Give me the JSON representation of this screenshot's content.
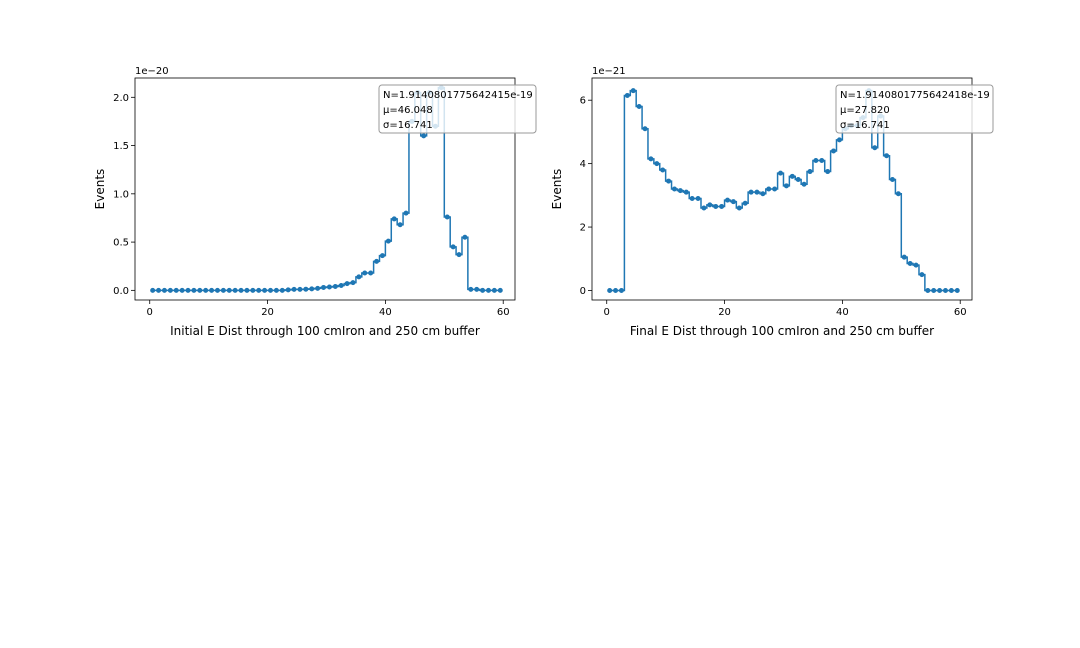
{
  "chart_data": [
    {
      "type": "line",
      "drawstyle": "steps-mid",
      "marker": "circle",
      "xlabel": "Initial E Dist through 100 cmIron and 250 cm buffer",
      "ylabel": "Events",
      "y_offset_label": "1e−20",
      "xlim": [
        -2.5,
        62
      ],
      "ylim": [
        -0.1,
        2.2
      ],
      "xticks": [
        0,
        20,
        40,
        60
      ],
      "xtick_labels": [
        "0",
        "20",
        "40",
        "60"
      ],
      "yticks": [
        0.0,
        0.5,
        1.0,
        1.5,
        2.0
      ],
      "ytick_labels": [
        "0.0",
        "0.5",
        "1.0",
        "1.5",
        "2.0"
      ],
      "grid": false,
      "stats_box": {
        "placement": "top-right",
        "lines": [
          "N=1.9140801775642415e-19",
          "μ=46.048",
          "σ=16.741"
        ]
      },
      "series": [
        {
          "color": "#1f77b4",
          "x": [
            0.5,
            1.5,
            2.5,
            3.5,
            4.5,
            5.5,
            6.5,
            7.5,
            8.5,
            9.5,
            10.5,
            11.5,
            12.5,
            13.5,
            14.5,
            15.5,
            16.5,
            17.5,
            18.5,
            19.5,
            20.5,
            21.5,
            22.5,
            23.5,
            24.5,
            25.5,
            26.5,
            27.5,
            28.5,
            29.5,
            30.5,
            31.5,
            32.5,
            33.5,
            34.5,
            35.5,
            36.5,
            37.5,
            38.5,
            39.5,
            40.5,
            41.5,
            42.5,
            43.5,
            44.5,
            45.5,
            46.5,
            47.5,
            48.5,
            49.5,
            50.5,
            51.5,
            52.5,
            53.5,
            54.5,
            55.5,
            56.5,
            57.5,
            58.5,
            59.5
          ],
          "y": [
            0,
            0,
            0,
            0,
            0,
            0,
            0,
            0,
            0,
            0,
            0,
            0,
            0,
            0,
            0,
            0,
            0,
            0,
            0,
            0,
            0,
            0,
            0,
            0.005,
            0.01,
            0.01,
            0.012,
            0.015,
            0.02,
            0.03,
            0.035,
            0.04,
            0.05,
            0.07,
            0.08,
            0.14,
            0.18,
            0.18,
            0.3,
            0.36,
            0.51,
            0.74,
            0.68,
            0.8,
            1.75,
            2.05,
            1.6,
            2.05,
            1.7,
            2.1,
            0.76,
            0.45,
            0.37,
            0.55,
            0.01,
            0.01,
            0,
            0,
            0,
            0
          ]
        }
      ]
    },
    {
      "type": "line",
      "drawstyle": "steps-mid",
      "marker": "circle",
      "xlabel": "Final E Dist through 100 cmIron and 250 cm buffer",
      "ylabel": "Events",
      "y_offset_label": "1e−21",
      "xlim": [
        -2.5,
        62
      ],
      "ylim": [
        -0.3,
        6.7
      ],
      "xticks": [
        0,
        20,
        40,
        60
      ],
      "xtick_labels": [
        "0",
        "20",
        "40",
        "60"
      ],
      "yticks": [
        0,
        2,
        4,
        6
      ],
      "ytick_labels": [
        "0",
        "2",
        "4",
        "6"
      ],
      "grid": false,
      "stats_box": {
        "placement": "top-right",
        "lines": [
          "N=1.9140801775642418e-19",
          "μ=27.820",
          "σ=16.741"
        ]
      },
      "series": [
        {
          "color": "#1f77b4",
          "x": [
            0.5,
            1.5,
            2.5,
            3.5,
            4.5,
            5.5,
            6.5,
            7.5,
            8.5,
            9.5,
            10.5,
            11.5,
            12.5,
            13.5,
            14.5,
            15.5,
            16.5,
            17.5,
            18.5,
            19.5,
            20.5,
            21.5,
            22.5,
            23.5,
            24.5,
            25.5,
            26.5,
            27.5,
            28.5,
            29.5,
            30.5,
            31.5,
            32.5,
            33.5,
            34.5,
            35.5,
            36.5,
            37.5,
            38.5,
            39.5,
            40.5,
            41.5,
            42.5,
            43.5,
            44.5,
            45.5,
            46.5,
            47.5,
            48.5,
            49.5,
            50.5,
            51.5,
            52.5,
            53.5,
            54.5,
            55.5,
            56.5,
            57.5,
            58.5,
            59.5
          ],
          "y": [
            0,
            0,
            0,
            6.15,
            6.3,
            5.8,
            5.1,
            4.15,
            4.0,
            3.8,
            3.45,
            3.2,
            3.15,
            3.1,
            2.9,
            2.9,
            2.6,
            2.7,
            2.65,
            2.65,
            2.85,
            2.8,
            2.6,
            2.75,
            3.1,
            3.1,
            3.05,
            3.2,
            3.2,
            3.7,
            3.3,
            3.6,
            3.5,
            3.35,
            3.75,
            4.1,
            4.1,
            3.75,
            4.4,
            4.75,
            5.1,
            5.2,
            5.2,
            5.45,
            6.3,
            4.5,
            5.5,
            4.25,
            3.5,
            3.05,
            1.05,
            0.85,
            0.8,
            0.5,
            0.0,
            0,
            0,
            0,
            0,
            0
          ]
        }
      ]
    }
  ]
}
